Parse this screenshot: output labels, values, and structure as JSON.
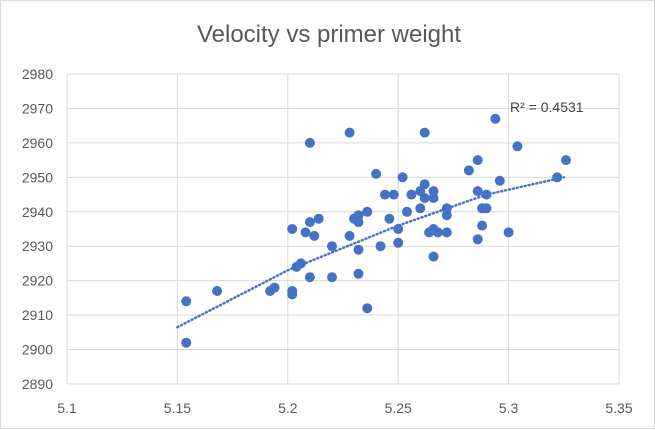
{
  "chart_data": {
    "type": "scatter",
    "title": "Velocity vs primer weight",
    "xlabel": "",
    "ylabel": "",
    "xlim": [
      5.1,
      5.35
    ],
    "ylim": [
      2890,
      2980
    ],
    "x_ticks": [
      "5.1",
      "5.15",
      "5.2",
      "5.25",
      "5.3",
      "5.35"
    ],
    "y_ticks": [
      "2890",
      "2900",
      "2910",
      "2920",
      "2930",
      "2940",
      "2950",
      "2960",
      "2970",
      "2980"
    ],
    "grid": true,
    "legend": "none",
    "marker_color": "#4472c4",
    "trendline": {
      "type": "logarithmic",
      "style": "dotted",
      "r2_label": "R² = 0.4531",
      "x_range": [
        5.15,
        5.325
      ],
      "points": [
        [
          5.15,
          2906.5
        ],
        [
          5.2,
          2923.0
        ],
        [
          5.25,
          2936.0
        ],
        [
          5.29,
          2945.0
        ],
        [
          5.325,
          2950.0
        ]
      ]
    },
    "points": [
      [
        5.154,
        2914
      ],
      [
        5.154,
        2902
      ],
      [
        5.168,
        2917
      ],
      [
        5.192,
        2917
      ],
      [
        5.194,
        2918
      ],
      [
        5.202,
        2917
      ],
      [
        5.202,
        2916
      ],
      [
        5.202,
        2935
      ],
      [
        5.204,
        2924
      ],
      [
        5.206,
        2925
      ],
      [
        5.208,
        2934
      ],
      [
        5.21,
        2921
      ],
      [
        5.21,
        2937
      ],
      [
        5.21,
        2960
      ],
      [
        5.212,
        2933
      ],
      [
        5.214,
        2938
      ],
      [
        5.22,
        2930
      ],
      [
        5.22,
        2921
      ],
      [
        5.228,
        2963
      ],
      [
        5.228,
        2933
      ],
      [
        5.23,
        2938
      ],
      [
        5.232,
        2937
      ],
      [
        5.232,
        2939
      ],
      [
        5.232,
        2922
      ],
      [
        5.232,
        2929
      ],
      [
        5.236,
        2912
      ],
      [
        5.236,
        2940
      ],
      [
        5.24,
        2951
      ],
      [
        5.242,
        2930
      ],
      [
        5.244,
        2945
      ],
      [
        5.246,
        2938
      ],
      [
        5.248,
        2945
      ],
      [
        5.25,
        2931
      ],
      [
        5.25,
        2935
      ],
      [
        5.252,
        2950
      ],
      [
        5.254,
        2940
      ],
      [
        5.256,
        2945
      ],
      [
        5.26,
        2946
      ],
      [
        5.26,
        2941
      ],
      [
        5.262,
        2963
      ],
      [
        5.262,
        2948
      ],
      [
        5.262,
        2944
      ],
      [
        5.264,
        2934
      ],
      [
        5.266,
        2935
      ],
      [
        5.266,
        2946
      ],
      [
        5.266,
        2944
      ],
      [
        5.266,
        2927
      ],
      [
        5.268,
        2934
      ],
      [
        5.272,
        2934
      ],
      [
        5.272,
        2939
      ],
      [
        5.272,
        2941
      ],
      [
        5.282,
        2952
      ],
      [
        5.286,
        2955
      ],
      [
        5.286,
        2946
      ],
      [
        5.286,
        2932
      ],
      [
        5.288,
        2941
      ],
      [
        5.288,
        2936
      ],
      [
        5.29,
        2945
      ],
      [
        5.29,
        2941
      ],
      [
        5.294,
        2967
      ],
      [
        5.296,
        2949
      ],
      [
        5.3,
        2934
      ],
      [
        5.304,
        2959
      ],
      [
        5.322,
        2950
      ],
      [
        5.326,
        2955
      ]
    ]
  }
}
